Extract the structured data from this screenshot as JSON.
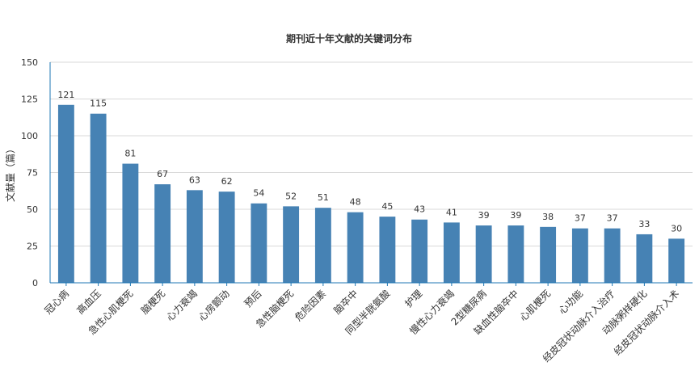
{
  "chart_data": {
    "type": "bar",
    "title": "期刊近十年文献的关键词分布",
    "xlabel": "",
    "ylabel": "文献量（篇）",
    "ylim": [
      0,
      150
    ],
    "yticks": [
      0,
      25,
      50,
      75,
      100,
      125,
      150
    ],
    "grid": true,
    "bar_color": "#4682b4",
    "categories": [
      "冠心病",
      "高血压",
      "急性心肌梗死",
      "脑梗死",
      "心力衰竭",
      "心房颤动",
      "预后",
      "急性脑梗死",
      "危险因素",
      "脑卒中",
      "同型半胱氨酸",
      "护理",
      "慢性心力衰竭",
      "2型糖尿病",
      "缺血性脑卒中",
      "心肌梗死",
      "心功能",
      "经皮冠状动脉介入治疗",
      "动脉粥样硬化",
      "经皮冠状动脉介入术"
    ],
    "values": [
      121,
      115,
      81,
      67,
      63,
      62,
      54,
      52,
      51,
      48,
      45,
      43,
      41,
      39,
      39,
      38,
      37,
      37,
      33,
      30
    ]
  }
}
